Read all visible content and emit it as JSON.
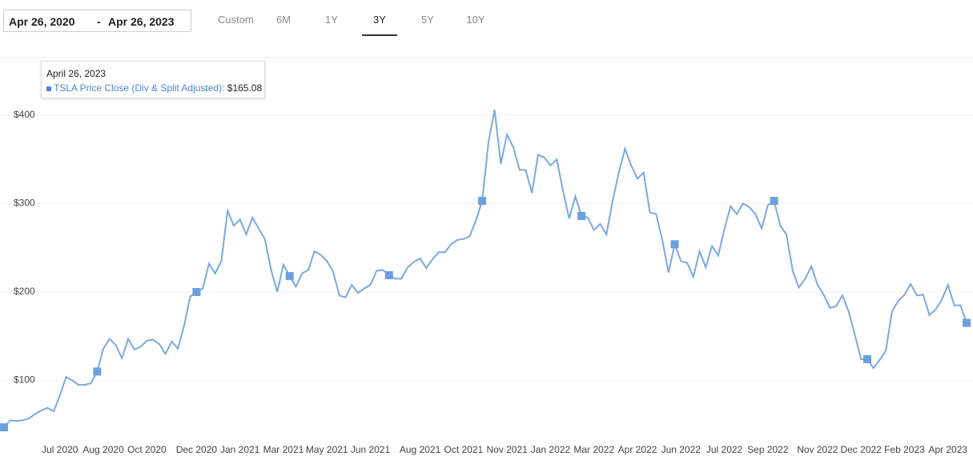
{
  "controls": {
    "start_date": "Apr 26, 2020",
    "separator": "-",
    "end_date": "Apr 26, 2023",
    "ranges": [
      "Custom",
      "6M",
      "1Y",
      "3Y",
      "5Y",
      "10Y"
    ],
    "selected": "3Y"
  },
  "tooltip": {
    "date": "April 26, 2023",
    "label": "TSLA Price Close (Div & Split Adjusted):",
    "value": "$165.08"
  },
  "chart_data": {
    "type": "line",
    "color": "#7aa9e0",
    "marker_color": "#6aa0e0",
    "grid": true,
    "ylim": [
      20,
      465
    ],
    "yticks": [
      {
        "value": 100,
        "label": "$100"
      },
      {
        "value": 200,
        "label": "$200"
      },
      {
        "value": 300,
        "label": "$300"
      },
      {
        "value": 400,
        "label": "$400"
      }
    ],
    "categories": [
      null,
      null,
      null,
      null,
      null,
      null,
      null,
      null,
      null,
      "Jul 2020",
      null,
      null,
      null,
      null,
      null,
      null,
      "Aug 2020",
      null,
      null,
      null,
      null,
      null,
      null,
      "Oct 2020",
      null,
      null,
      null,
      null,
      null,
      null,
      null,
      "Dec 2020",
      null,
      null,
      null,
      null,
      null,
      null,
      "Jan 2021",
      null,
      null,
      null,
      null,
      null,
      null,
      "Mar 2021",
      null,
      null,
      null,
      null,
      null,
      null,
      "May 2021",
      null,
      null,
      null,
      null,
      null,
      null,
      "Jun 2021",
      null,
      null,
      null,
      null,
      null,
      null,
      null,
      "Aug 2021",
      null,
      null,
      null,
      null,
      null,
      null,
      "Oct 2021",
      null,
      null,
      null,
      null,
      null,
      null,
      "Nov 2021",
      null,
      null,
      null,
      null,
      null,
      null,
      "Jan 2022",
      null,
      null,
      null,
      null,
      null,
      null,
      "Mar 2022",
      null,
      null,
      null,
      null,
      null,
      null,
      "Apr 2022",
      null,
      null,
      null,
      null,
      null,
      null,
      "Jun 2022",
      null,
      null,
      null,
      null,
      null,
      null,
      "Jul 2022",
      null,
      null,
      null,
      null,
      null,
      null,
      "Sep 2022",
      null,
      null,
      null,
      null,
      null,
      null,
      null,
      "Nov 2022",
      null,
      null,
      null,
      null,
      null,
      null,
      "Dec 2022",
      null,
      null,
      null,
      null,
      null,
      null,
      "Feb 2023",
      null,
      null,
      null,
      null,
      null,
      null,
      "Apr 2023",
      null,
      null,
      null
    ],
    "values": [
      47,
      55,
      54,
      55,
      57,
      62,
      66,
      69,
      65,
      83,
      104,
      100,
      95,
      95,
      97,
      110,
      136,
      147,
      140,
      125,
      147,
      135,
      138,
      145,
      146,
      141,
      130,
      144,
      136,
      162,
      195,
      200,
      204,
      232,
      221,
      235,
      292,
      275,
      282,
      265,
      284,
      272,
      260,
      225,
      200,
      231,
      218,
      206,
      221,
      225,
      246,
      242,
      235,
      223,
      196,
      194,
      208,
      199,
      204,
      208,
      224,
      225,
      219,
      215,
      215,
      228,
      234,
      238,
      227,
      237,
      245,
      245,
      254,
      259,
      260,
      263,
      281,
      303,
      369,
      406,
      345,
      378,
      364,
      338,
      338,
      312,
      355,
      352,
      343,
      350,
      315,
      283,
      308,
      286,
      284,
      270,
      277,
      265,
      303,
      335,
      362,
      343,
      328,
      335,
      290,
      288,
      259,
      222,
      254,
      235,
      233,
      217,
      246,
      228,
      252,
      241,
      271,
      297,
      288,
      300,
      296,
      288,
      272,
      298,
      303,
      275,
      265,
      224,
      205,
      215,
      229,
      208,
      197,
      182,
      184,
      196,
      178,
      152,
      124,
      124,
      114,
      123,
      134,
      178,
      190,
      197,
      209,
      196,
      197,
      174,
      180,
      191,
      208,
      185,
      185,
      165.08
    ]
  }
}
